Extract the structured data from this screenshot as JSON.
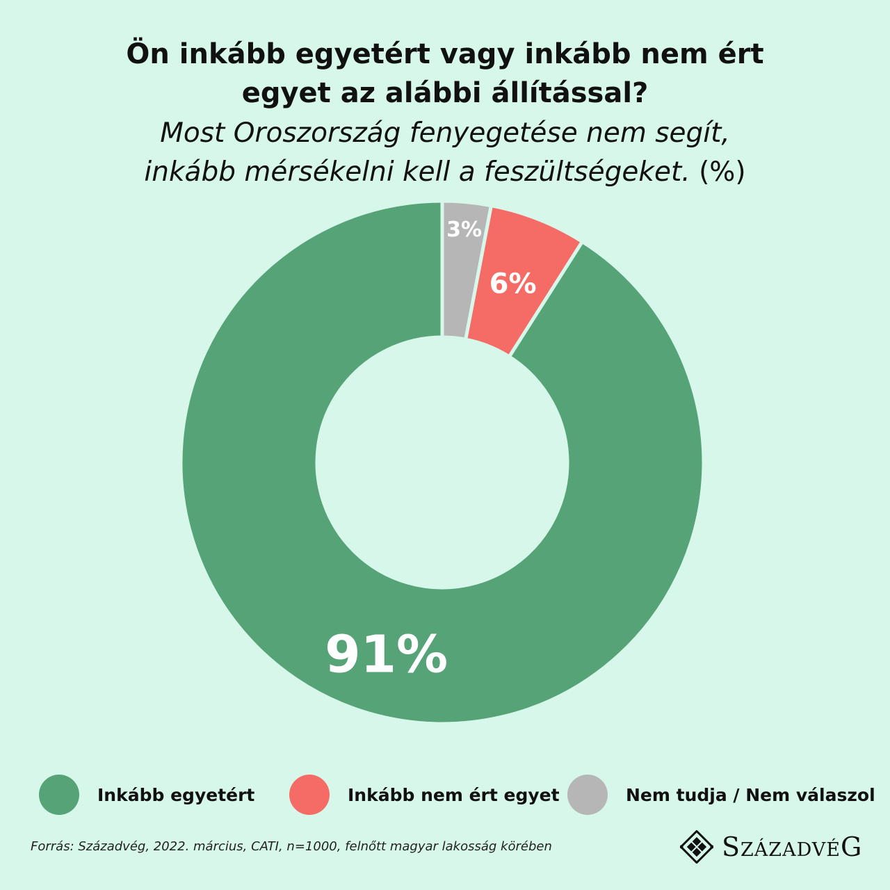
{
  "title_lines": [
    "Ön inkább egyetért vagy inkább nem ért",
    "egyet az alábbi állítással?"
  ],
  "subtitle_lines": [
    "Most Oroszország fenyegetése nem segít,",
    "inkább mérsékelni kell a feszültségeket."
  ],
  "subtitle_unit": "(%)",
  "colors": {
    "background": "#d6f7ea",
    "agree": "#56a377",
    "disagree": "#f56b65",
    "unknown": "#b6b6b6"
  },
  "chart_data": {
    "type": "pie",
    "subtype": "donut",
    "title": "Ön inkább egyetért vagy inkább nem ért egyet az alábbi állítással?",
    "subtitle": "Most Oroszország fenyegetése nem segít, inkább mérsékelni kell a feszültségeket. (%)",
    "categories": [
      "Nem tudja / Nem válaszol",
      "Inkább nem ért egyet",
      "Inkább egyetért"
    ],
    "values": [
      3,
      6,
      91
    ],
    "labels": [
      "3%",
      "6%",
      "91%"
    ],
    "start": "12 o'clock, clockwise",
    "legend_position": "bottom"
  },
  "legend": [
    {
      "label": "Inkább egyetért",
      "color": "#56a377"
    },
    {
      "label": "Inkább nem ért egyet",
      "color": "#f56b65"
    },
    {
      "label": "Nem tudja / Nem válaszol",
      "color": "#b6b6b6"
    }
  ],
  "source": "Forrás: Századvég, 2022. március, CATI, n=1000, felnőtt magyar lakosság körében",
  "logo": {
    "first": "S",
    "middle": "ZÁZADVÉ",
    "last": "G",
    "icon": "diamond-logo-icon"
  }
}
